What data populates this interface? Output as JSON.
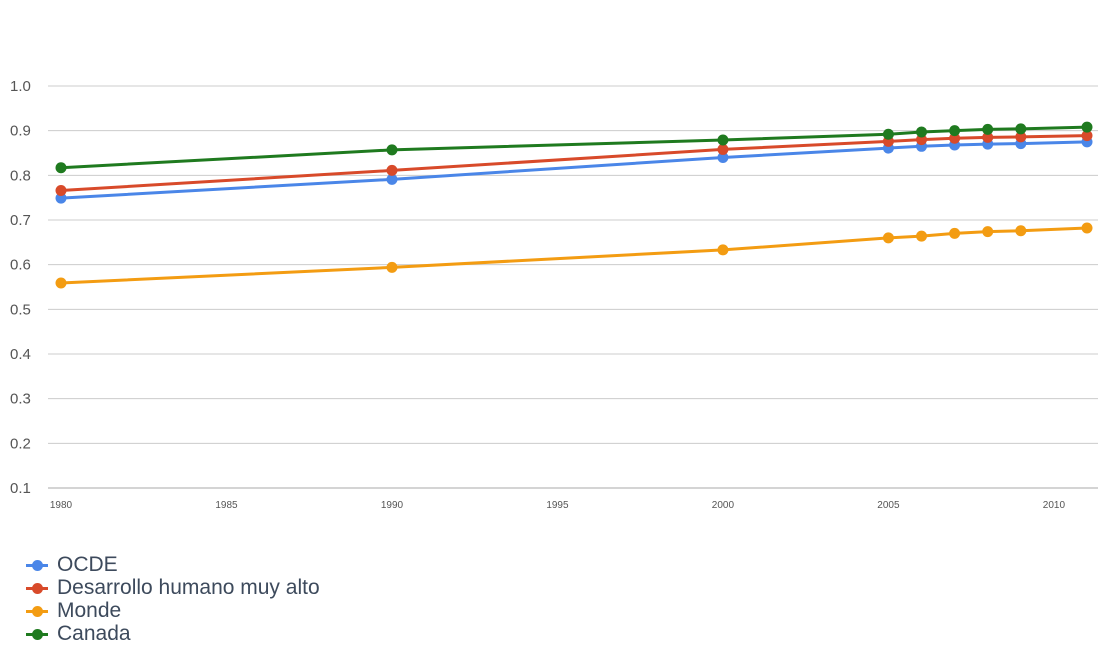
{
  "chart_data": {
    "type": "line",
    "title": "",
    "xlabel": "",
    "ylabel": "",
    "ylim": [
      0.1,
      1.0
    ],
    "xlim": [
      1980,
      2011
    ],
    "y_ticks": [
      "0.1",
      "0.2",
      "0.3",
      "0.4",
      "0.5",
      "0.6",
      "0.7",
      "0.8",
      "0.9",
      "1.0"
    ],
    "x_ticks": [
      "1980",
      "1985",
      "1990",
      "1995",
      "2000",
      "2005",
      "2010"
    ],
    "grid": true,
    "legend_position": "bottom-left",
    "x": [
      1980,
      1990,
      2000,
      2005,
      2006,
      2007,
      2008,
      2009,
      2011
    ],
    "series": [
      {
        "name": "OCDE",
        "color": "#4a86e8",
        "values": [
          0.749,
          0.791,
          0.84,
          0.861,
          0.865,
          0.868,
          0.87,
          0.871,
          0.875
        ]
      },
      {
        "name": "Desarrollo humano muy alto",
        "color": "#d84a2a",
        "values": [
          0.766,
          0.811,
          0.858,
          0.876,
          0.88,
          0.883,
          0.885,
          0.886,
          0.889
        ]
      },
      {
        "name": "Monde",
        "color": "#f39c12",
        "values": [
          0.559,
          0.594,
          0.633,
          0.66,
          0.664,
          0.67,
          0.674,
          0.676,
          0.682
        ]
      },
      {
        "name": "Canada",
        "color": "#1f7a1f",
        "values": [
          0.817,
          0.857,
          0.879,
          0.892,
          0.897,
          0.9,
          0.903,
          0.904,
          0.908
        ]
      }
    ]
  }
}
